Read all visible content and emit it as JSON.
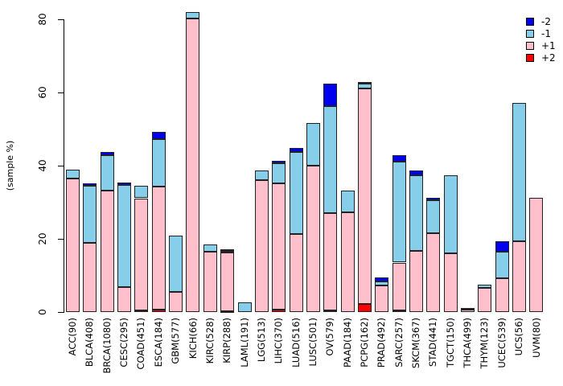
{
  "figure": {
    "background": "#ffffff",
    "axis_color": "#000000",
    "bar_border_color": "#222222"
  },
  "y_axis": {
    "label": "(sample %)",
    "ticks": [
      0,
      20,
      40,
      60,
      80
    ],
    "min": 0,
    "max": 80
  },
  "legend": {
    "items": [
      {
        "label": "-2",
        "color": "#0000EE"
      },
      {
        "label": "-1",
        "color": "#87CEEB"
      },
      {
        "label": "+1",
        "color": "#FFC0CB"
      },
      {
        "label": "+2",
        "color": "#FF0000"
      }
    ]
  },
  "chart_data": {
    "type": "bar",
    "stacked": true,
    "title": "",
    "xlabel": "",
    "ylabel": "(sample %)",
    "ylim": [
      0,
      80
    ],
    "grid": false,
    "legend_position": "top-right",
    "stack_order_bottom_to_top": [
      "+2",
      "+1",
      "-1",
      "-2"
    ],
    "categories": [
      "ACC(90)",
      "BLCA(408)",
      "BRCA(1080)",
      "CESC(295)",
      "COAD(451)",
      "ESCA(184)",
      "GBM(577)",
      "KICH(66)",
      "KIRC(528)",
      "KIRP(288)",
      "LAML(191)",
      "LGG(513)",
      "LIHC(370)",
      "LUAD(516)",
      "LUSC(501)",
      "OV(579)",
      "PAAD(184)",
      "PCPG(162)",
      "PRAD(492)",
      "SARC(257)",
      "SKCM(367)",
      "STAD(441)",
      "TGCT(150)",
      "THCA(499)",
      "THYM(123)",
      "UCEC(539)",
      "UCS(56)",
      "UVM(80)"
    ],
    "series": [
      {
        "name": "+2",
        "color": "#FF0000",
        "values": [
          0,
          0,
          0,
          0,
          0.5,
          0.7,
          0,
          0,
          0,
          0.3,
          0,
          0,
          0.6,
          0,
          0,
          0.4,
          0,
          2.2,
          0,
          0.4,
          0,
          0,
          0,
          0,
          0,
          0,
          0,
          0
        ]
      },
      {
        "name": "+1",
        "color": "#FFC0CB",
        "values": [
          36.5,
          19.0,
          33.2,
          6.8,
          30.6,
          33.5,
          5.6,
          80.3,
          16.4,
          16.0,
          0,
          36.0,
          34.5,
          21.3,
          40.0,
          26.6,
          27.3,
          58.9,
          7.3,
          13.1,
          16.7,
          21.5,
          16.0,
          0.6,
          6.5,
          9.3,
          19.3,
          31.3
        ]
      },
      {
        "name": "-1",
        "color": "#87CEEB",
        "values": [
          2.5,
          15.5,
          9.7,
          27.9,
          3.5,
          13.0,
          15.2,
          1.6,
          2.0,
          0.4,
          2.6,
          2.8,
          5.5,
          22.5,
          11.7,
          29.2,
          5.9,
          1.4,
          1.1,
          27.5,
          20.7,
          9.0,
          21.3,
          0.6,
          1.0,
          7.1,
          37.8,
          0
        ]
      },
      {
        "name": "-2",
        "color": "#0000EE",
        "values": [
          0,
          0.7,
          0.9,
          0.8,
          0,
          2.0,
          0,
          0,
          0,
          0.4,
          0,
          0,
          0.7,
          1.0,
          0,
          6.2,
          0,
          0.4,
          1.1,
          1.9,
          1.3,
          0.8,
          0,
          0,
          0,
          2.9,
          0,
          0
        ]
      }
    ]
  }
}
